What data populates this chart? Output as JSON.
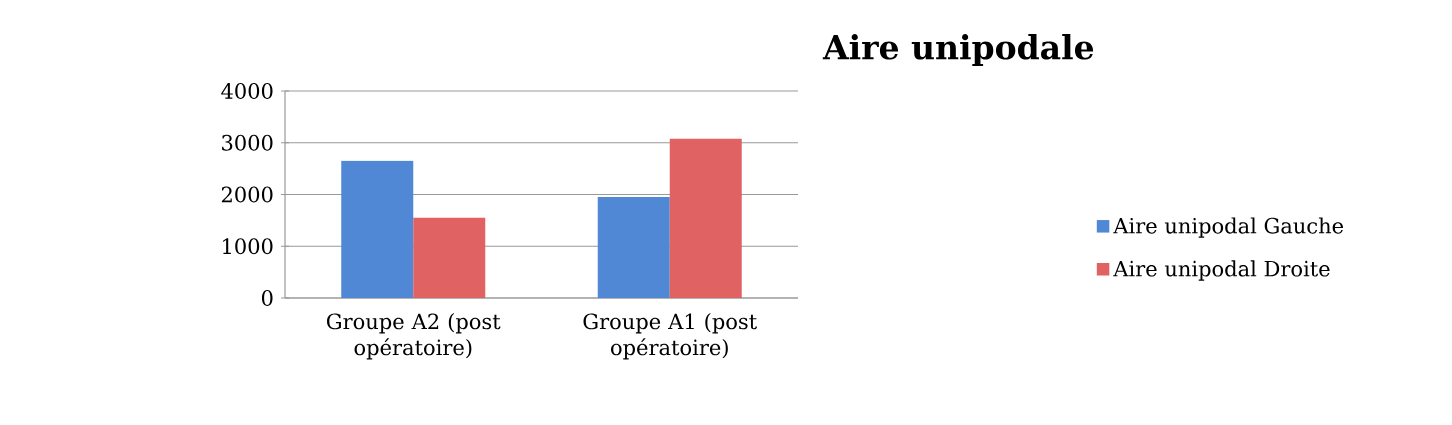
{
  "chart_data": {
    "type": "bar",
    "title": "Aire unipodale",
    "categories": [
      "Groupe A2 (post opératoire)",
      "Groupe A1 (post opératoire)"
    ],
    "series": [
      {
        "name": "Aire unipodal Gauche",
        "color": "#5088d6",
        "values": [
          2650,
          1950
        ]
      },
      {
        "name": "Aire unipodal Droite",
        "color": "#e06262",
        "values": [
          1550,
          3080
        ]
      }
    ],
    "ylim": [
      0,
      4000
    ],
    "yticks": [
      0,
      1000,
      2000,
      3000,
      4000
    ],
    "grid": "y",
    "legend": "right"
  }
}
